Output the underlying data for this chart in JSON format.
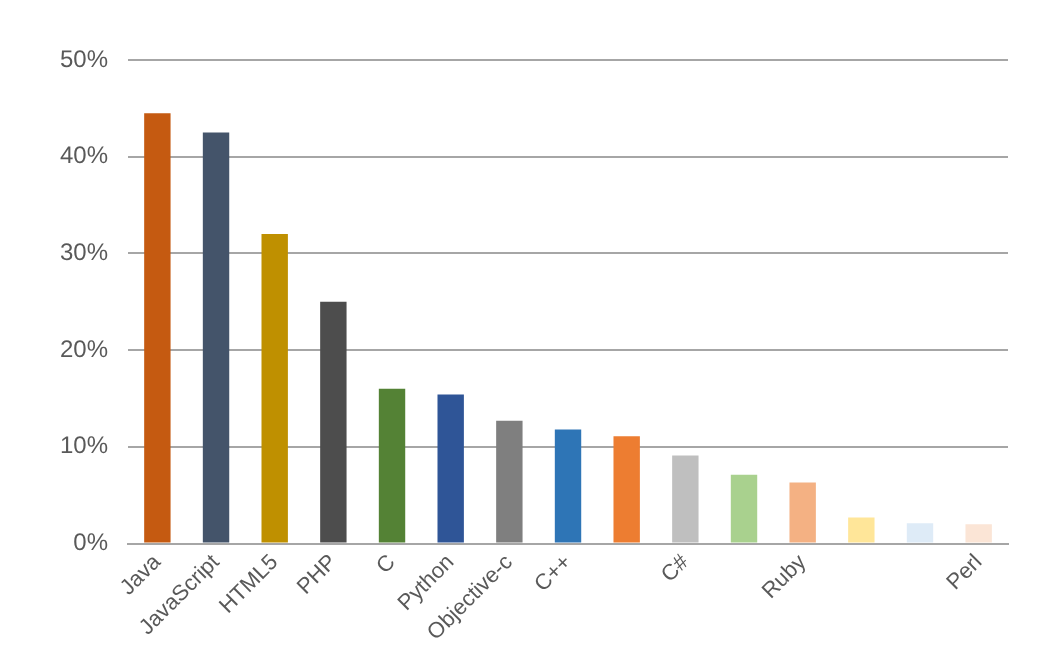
{
  "chart_data": {
    "type": "bar",
    "categories": [
      "Java",
      "JavaScript",
      "HTML5",
      "PHP",
      "C",
      "Python",
      "Objective-c",
      "C++",
      null,
      "C#",
      null,
      "Ruby",
      null,
      null,
      "Perl"
    ],
    "values": [
      44.5,
      42.5,
      32,
      25,
      16,
      15.4,
      12.7,
      11.8,
      11.1,
      9.1,
      7.1,
      6.3,
      2.7,
      2.1,
      2
    ],
    "colors": [
      "#c55a11",
      "#44546a",
      "#bf9000",
      "#4d4d4d",
      "#548235",
      "#2f5597",
      "#7f7f7f",
      "#2e75b6",
      "#ed7d31",
      "#bfbfbf",
      "#a9d18e",
      "#f4b183",
      "#ffe699",
      "#deebf7",
      "#fbe5d6"
    ],
    "ylim": [
      0,
      50
    ],
    "yticks": [
      {
        "value": 0,
        "label": "0%"
      },
      {
        "value": 10,
        "label": "10%"
      },
      {
        "value": 20,
        "label": "20%"
      },
      {
        "value": 30,
        "label": "30%"
      },
      {
        "value": 40,
        "label": "40%"
      },
      {
        "value": 50,
        "label": "50%"
      }
    ],
    "grid": "y"
  }
}
